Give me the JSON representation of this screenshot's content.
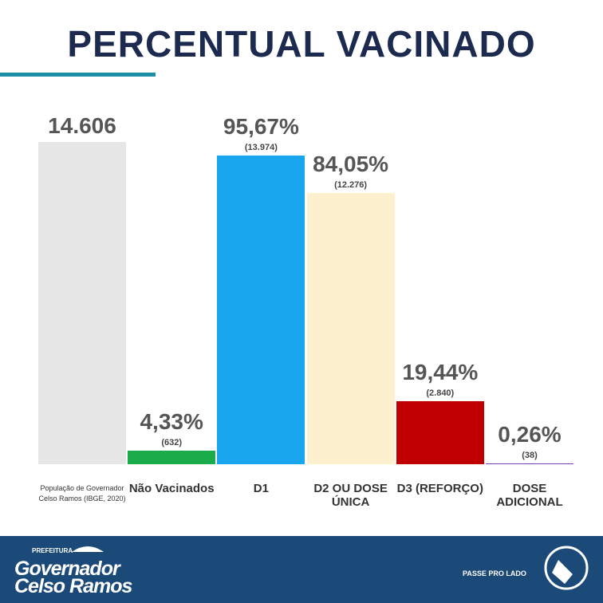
{
  "chart_data": {
    "type": "bar",
    "title": "PERCENTUAL VACINADO",
    "categories": [
      "População de Governador Celso Ramos (IBGE, 2020)",
      "Não Vacinados",
      "D1",
      "D2 OU DOSE ÚNICA",
      "D3 (REFORÇO)",
      "DOSE ADICIONAL"
    ],
    "values": [
      14606,
      632,
      13974,
      12276,
      2840,
      38
    ],
    "value_labels": [
      "14.606",
      "(632)",
      "(13.974)",
      "(12.276)",
      "(2.840)",
      "(38)"
    ],
    "percents": [
      null,
      4.33,
      95.67,
      84.05,
      19.44,
      0.26
    ],
    "percent_labels": [
      null,
      "4,33%",
      "95,67%",
      "84,05%",
      "19,44%",
      "0,26%"
    ],
    "colors": [
      "#e6e6e6",
      "#1aab4a",
      "#1aa6ee",
      "#fdf0cc",
      "#c00000",
      "#7b3fb0"
    ]
  },
  "footer": {
    "prefix": "PREFEITURA",
    "name": [
      "Governador",
      "Celso Ramos"
    ],
    "hint": "PASSE PRO LADO"
  }
}
